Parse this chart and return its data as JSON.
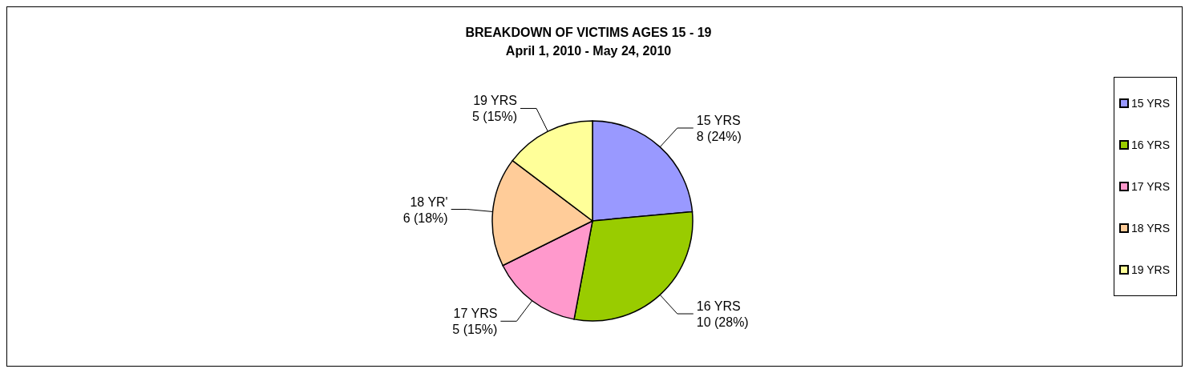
{
  "chart_data": {
    "type": "pie",
    "title": "BREAKDOWN OF VICTIMS AGES 15 - 19",
    "subtitle": "April 1, 2010 - May 24, 2010",
    "categories": [
      "15 YRS",
      "16 YRS",
      "17 YRS",
      "18 YRS",
      "19 YRS"
    ],
    "values": [
      8,
      10,
      5,
      6,
      5
    ],
    "colors": [
      "#9999ff",
      "#99cc00",
      "#ff99cc",
      "#ffcc99",
      "#ffff99"
    ],
    "value_labels": [
      "15 YRS\n8 (24%)",
      "16 YRS\n10 (28%)",
      "17 YRS\n5 (15%)",
      "18 YR'\n6 (18%)",
      "19 YRS\n5 (15%)"
    ],
    "legend": "right"
  }
}
